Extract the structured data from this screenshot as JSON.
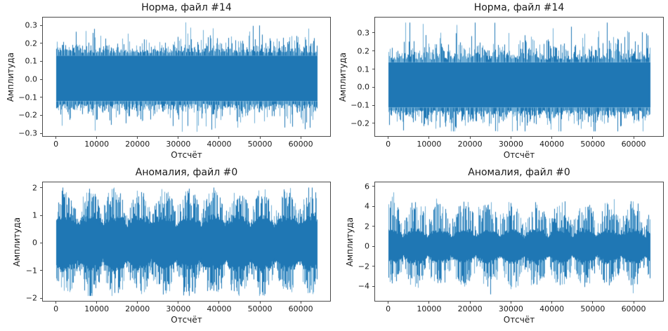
{
  "figure": {
    "background": "#ffffff"
  },
  "colors": {
    "line": "#1f77b4",
    "line_light": "#6faed6",
    "spine": "#4a4a4a",
    "text": "#1a1a1a"
  },
  "chart_data": [
    {
      "type": "line",
      "title": "Норма, файл #14",
      "xlabel": "Отсчёт",
      "ylabel": "Амплитуда",
      "xlim": [
        -3200,
        67200
      ],
      "ylim": [
        -0.315,
        0.343
      ],
      "x_data_range": [
        0,
        64000
      ],
      "xticks": {
        "values": [
          0,
          10000,
          20000,
          30000,
          40000,
          50000,
          60000
        ],
        "labels": [
          "0",
          "10000",
          "20000",
          "30000",
          "40000",
          "50000",
          "60000"
        ]
      },
      "yticks": {
        "values": [
          0.3,
          0.2,
          0.1,
          0.0,
          -0.1,
          -0.2,
          -0.3
        ],
        "labels": [
          "0.3",
          "0.2",
          "0.1",
          "0.0",
          "−0.1",
          "−0.2",
          "−0.3"
        ]
      },
      "grid": false,
      "legend": null,
      "signal": {
        "kind": "noise",
        "seed": 11,
        "top_base": 0.146,
        "top_tail": 0.033,
        "clip_hi": 0.316,
        "bot_base": 0.136,
        "bot_tail": 0.032,
        "clip_lo": -0.291,
        "core_hi": 0.132,
        "core_lo": 0.122,
        "light_fraction": 0.5
      }
    },
    {
      "type": "line",
      "title": "Норма, файл #14",
      "xlabel": "Отсчёт",
      "ylabel": "Амплитуда",
      "xlim": [
        -3200,
        67200
      ],
      "ylim": [
        -0.27,
        0.385
      ],
      "x_data_range": [
        0,
        64000
      ],
      "xticks": {
        "values": [
          0,
          10000,
          20000,
          30000,
          40000,
          50000,
          60000
        ],
        "labels": [
          "0",
          "10000",
          "20000",
          "30000",
          "40000",
          "50000",
          "60000"
        ]
      },
      "yticks": {
        "values": [
          0.3,
          0.2,
          0.1,
          0.0,
          -0.1,
          -0.2
        ],
        "labels": [
          "0.3",
          "0.2",
          "0.1",
          "0.0",
          "−0.1",
          "−0.2"
        ]
      },
      "grid": false,
      "legend": null,
      "signal": {
        "kind": "noise",
        "seed": 22,
        "top_base": 0.152,
        "top_tail": 0.044,
        "clip_hi": 0.357,
        "bot_base": 0.127,
        "bot_tail": 0.036,
        "clip_lo": -0.244,
        "core_hi": 0.138,
        "core_lo": 0.113,
        "light_fraction": 0.5
      }
    },
    {
      "type": "line",
      "title": "Аномалия, файл #0",
      "xlabel": "Отсчёт",
      "ylabel": "Амплитуда",
      "xlim": [
        -3200,
        67200
      ],
      "ylim": [
        -2.1,
        2.2
      ],
      "x_data_range": [
        0,
        64000
      ],
      "xticks": {
        "values": [
          0,
          10000,
          20000,
          30000,
          40000,
          50000,
          60000
        ],
        "labels": [
          "0",
          "10000",
          "20000",
          "30000",
          "40000",
          "50000",
          "60000"
        ]
      },
      "yticks": {
        "values": [
          2,
          1,
          0,
          -1,
          -2
        ],
        "labels": [
          "2",
          "1",
          "0",
          "−1",
          "−2"
        ]
      },
      "grid": false,
      "legend": null,
      "signal": {
        "kind": "mod",
        "seed": 33,
        "bumps": 10.6,
        "phase": 0.12,
        "sharp": 0.65,
        "core_base": 0.68,
        "core_mod": 0.4,
        "p0": 0.38,
        "p1": 0.42,
        "a0": 0.18,
        "a1": 0.78,
        "tailK": 0.09,
        "clip_hi": 2.01,
        "na0": 0.16,
        "na1": 0.74,
        "ntail": 0.09,
        "clip_lo": -1.92,
        "light_fraction": 0.5
      }
    },
    {
      "type": "line",
      "title": "Аномалия, файл #0",
      "xlabel": "Отсчёт",
      "ylabel": "Амплитуда",
      "xlim": [
        -3200,
        67200
      ],
      "ylim": [
        -5.45,
        6.4
      ],
      "x_data_range": [
        0,
        64000
      ],
      "xticks": {
        "values": [
          0,
          10000,
          20000,
          30000,
          40000,
          50000,
          60000
        ],
        "labels": [
          "0",
          "10000",
          "20000",
          "30000",
          "40000",
          "50000",
          "60000"
        ]
      },
      "yticks": {
        "values": [
          6,
          4,
          2,
          0,
          -2,
          -4
        ],
        "labels": [
          "6",
          "4",
          "2",
          "0",
          "−2",
          "−4"
        ]
      },
      "grid": false,
      "legend": null,
      "signal": {
        "kind": "mod",
        "seed": 44,
        "bumps": 10.8,
        "phase": 0.4,
        "sharp": 0.65,
        "core_base": 1.0,
        "core_mod": 0.85,
        "p0": 0.38,
        "p1": 0.42,
        "a0": 0.5,
        "a1": 2.2,
        "tailK": 0.3,
        "clip_hi": 5.86,
        "na0": 0.45,
        "na1": 1.85,
        "ntail": 0.25,
        "clip_lo": -4.9,
        "light_fraction": 0.5
      }
    }
  ]
}
